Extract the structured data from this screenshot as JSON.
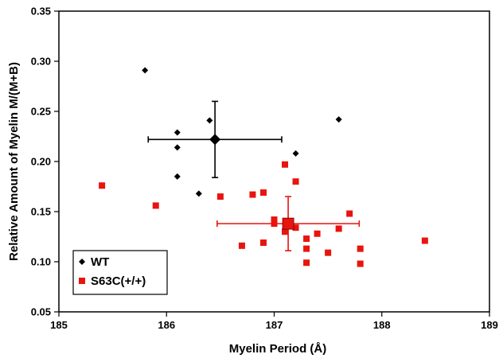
{
  "chart_data": {
    "type": "scatter",
    "title": "",
    "xlabel": "Myelin Period (Å)",
    "ylabel": "Relative Amount of Myelin M/(M+B)",
    "xlim": [
      185,
      189
    ],
    "ylim": [
      0.05,
      0.35
    ],
    "x_ticks": [
      "185",
      "186",
      "187",
      "188",
      "189"
    ],
    "y_ticks": [
      "0.05",
      "0.10",
      "0.15",
      "0.20",
      "0.25",
      "0.30",
      "0.35"
    ],
    "grid": false,
    "legend_position": "bottom-left",
    "series": [
      {
        "name": "WT",
        "marker": "diamond",
        "color": "#000000",
        "points": [
          {
            "x": 185.8,
            "y": 0.291
          },
          {
            "x": 186.1,
            "y": 0.229
          },
          {
            "x": 186.1,
            "y": 0.214
          },
          {
            "x": 186.1,
            "y": 0.185
          },
          {
            "x": 186.3,
            "y": 0.168
          },
          {
            "x": 186.4,
            "y": 0.241
          },
          {
            "x": 187.2,
            "y": 0.208
          },
          {
            "x": 187.6,
            "y": 0.242
          }
        ],
        "mean": {
          "x": 186.45,
          "y": 0.222,
          "x_err": 0.62,
          "y_err": 0.038
        }
      },
      {
        "name": "S63C(+/+)",
        "marker": "square",
        "color": "#e8140e",
        "points": [
          {
            "x": 185.4,
            "y": 0.176
          },
          {
            "x": 185.9,
            "y": 0.156
          },
          {
            "x": 186.5,
            "y": 0.165
          },
          {
            "x": 186.7,
            "y": 0.116
          },
          {
            "x": 186.8,
            "y": 0.167
          },
          {
            "x": 186.9,
            "y": 0.169
          },
          {
            "x": 186.9,
            "y": 0.119
          },
          {
            "x": 187.0,
            "y": 0.142
          },
          {
            "x": 187.0,
            "y": 0.138
          },
          {
            "x": 187.1,
            "y": 0.197
          },
          {
            "x": 187.1,
            "y": 0.13
          },
          {
            "x": 187.2,
            "y": 0.18
          },
          {
            "x": 187.2,
            "y": 0.134
          },
          {
            "x": 187.3,
            "y": 0.123
          },
          {
            "x": 187.3,
            "y": 0.113
          },
          {
            "x": 187.3,
            "y": 0.099
          },
          {
            "x": 187.4,
            "y": 0.128
          },
          {
            "x": 187.5,
            "y": 0.109
          },
          {
            "x": 187.6,
            "y": 0.133
          },
          {
            "x": 187.7,
            "y": 0.148
          },
          {
            "x": 187.8,
            "y": 0.113
          },
          {
            "x": 187.8,
            "y": 0.098
          },
          {
            "x": 188.4,
            "y": 0.121
          }
        ],
        "mean": {
          "x": 187.13,
          "y": 0.138,
          "x_err": 0.66,
          "y_err": 0.027
        }
      }
    ]
  }
}
